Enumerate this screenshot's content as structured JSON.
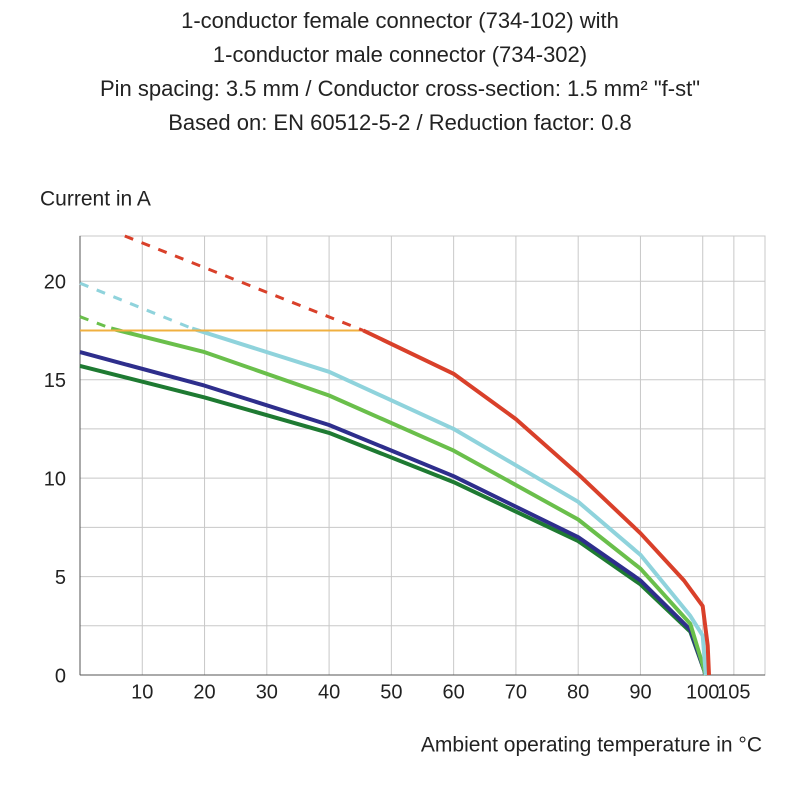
{
  "chart_data": {
    "type": "line",
    "title_lines": [
      "1-conductor female connector (734-102) with",
      "1-conductor male connector (734-302)",
      "Pin spacing: 3.5 mm / Conductor cross-section: 1.5 mm² \"f-st\"",
      "Based on: EN 60512-5-2 / Reduction factor: 0.8"
    ],
    "y_label": "Current in A",
    "x_label": "Ambient operating temperature in °C",
    "xlim": [
      0,
      110
    ],
    "xticks": [
      10,
      20,
      30,
      40,
      50,
      60,
      70,
      80,
      90,
      100,
      105
    ],
    "ylim": [
      0,
      22.3
    ],
    "yticks": [
      0,
      5,
      10,
      15,
      20
    ],
    "y_minor_grid": [
      2.5,
      7.5,
      12.5,
      17.5
    ],
    "grid": true,
    "series": [
      {
        "color": "#1e7a32",
        "style": "solid",
        "x": [
          0,
          20,
          40,
          60,
          80,
          90,
          98,
          100.5
        ],
        "values": [
          15.7,
          14.1,
          12.3,
          9.8,
          6.8,
          4.6,
          2.2,
          0
        ]
      },
      {
        "color": "#2e2e8c",
        "style": "solid",
        "x": [
          0,
          20,
          40,
          60,
          80,
          90,
          98,
          100.5
        ],
        "values": [
          16.4,
          14.7,
          12.7,
          10.1,
          7.0,
          4.8,
          2.3,
          0
        ]
      },
      {
        "color": "#6abf4b",
        "style": "dashed",
        "x": [
          0,
          5
        ],
        "values": [
          18.2,
          17.6
        ]
      },
      {
        "color": "#6abf4b",
        "style": "solid",
        "x": [
          5,
          20,
          40,
          60,
          80,
          90,
          98,
          100.5
        ],
        "values": [
          17.6,
          16.4,
          14.2,
          11.4,
          7.9,
          5.4,
          2.6,
          0
        ]
      },
      {
        "color": "#8fd3dc",
        "style": "dashed",
        "x": [
          0,
          18
        ],
        "values": [
          19.9,
          17.6
        ]
      },
      {
        "color": "#8fd3dc",
        "style": "solid",
        "x": [
          18,
          40,
          60,
          80,
          90,
          98,
          100,
          100.5
        ],
        "values": [
          17.6,
          15.4,
          12.5,
          8.8,
          6.1,
          3.0,
          2.0,
          0
        ]
      },
      {
        "color": "#f0b040",
        "style": "solid",
        "x": [
          0,
          45.5
        ],
        "values": [
          17.5,
          17.5
        ]
      },
      {
        "color": "#d9402a",
        "style": "dashed",
        "x": [
          7.2,
          45.5
        ],
        "values": [
          22.3,
          17.5
        ]
      },
      {
        "color": "#d9402a",
        "style": "solid",
        "x": [
          45.5,
          60,
          70,
          80,
          90,
          97,
          100,
          100.8,
          101
        ],
        "values": [
          17.5,
          15.3,
          13.0,
          10.2,
          7.2,
          4.8,
          3.5,
          1.5,
          0
        ]
      }
    ]
  }
}
